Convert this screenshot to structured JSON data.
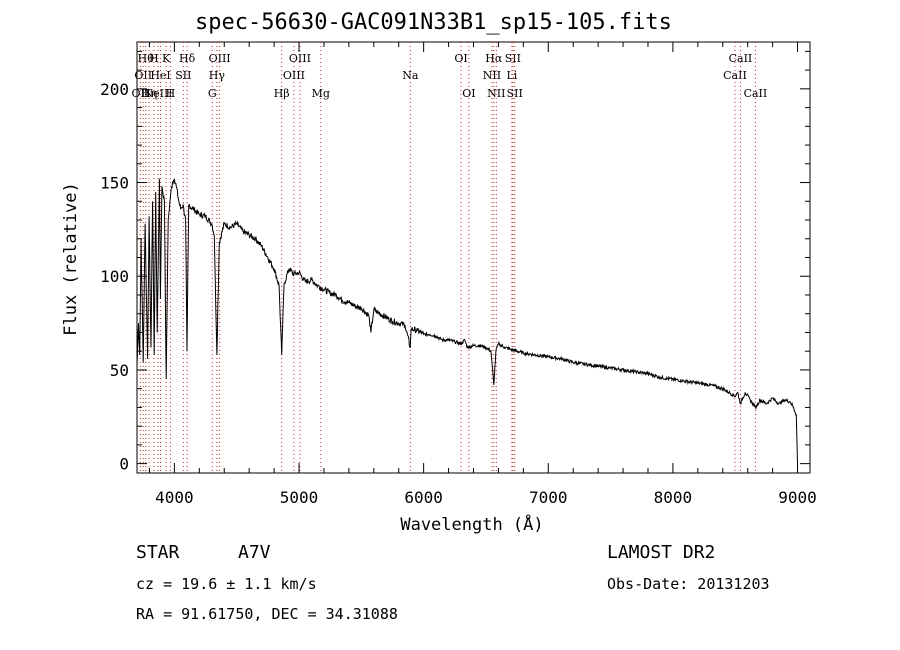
{
  "chart_data": {
    "type": "line",
    "title": "spec-56630-GAC091N33B1_sp15-105.fits",
    "xlabel": "Wavelength (Å)",
    "ylabel": "Flux (relative)",
    "xlim": [
      3700,
      9100
    ],
    "ylim": [
      -5,
      225
    ],
    "xticks": [
      4000,
      5000,
      6000,
      7000,
      8000,
      9000
    ],
    "yticks": [
      0,
      50,
      100,
      150,
      200
    ],
    "grid": false,
    "series": [
      {
        "x": [
          3700,
          3712,
          3722,
          3733,
          3750,
          3765,
          3785,
          3797,
          3812,
          3825,
          3838,
          3850,
          3862,
          3880,
          3888,
          3900,
          3920,
          3934,
          3950,
          3970,
          3985,
          4000,
          4015,
          4035,
          4050,
          4070,
          4090,
          4101,
          4115,
          4150,
          4200,
          4250,
          4300,
          4320,
          4341,
          4360,
          4400,
          4450,
          4500,
          4550,
          4600,
          4650,
          4700,
          4750,
          4800,
          4840,
          4861,
          4880,
          4920,
          4960,
          5000,
          5050,
          5100,
          5150,
          5200,
          5250,
          5300,
          5350,
          5400,
          5450,
          5500,
          5560,
          5577,
          5600,
          5650,
          5700,
          5750,
          5800,
          5850,
          5893,
          5900,
          5950,
          6000,
          6050,
          6100,
          6150,
          6200,
          6250,
          6300,
          6330,
          6350,
          6400,
          6450,
          6500,
          6540,
          6563,
          6580,
          6600,
          6650,
          6700,
          6800,
          6900,
          7000,
          7100,
          7200,
          7300,
          7400,
          7500,
          7600,
          7700,
          7800,
          7900,
          8000,
          8100,
          8200,
          8300,
          8400,
          8450,
          8498,
          8520,
          8542,
          8580,
          8620,
          8662,
          8700,
          8750,
          8800,
          8850,
          8900,
          8940,
          8960,
          8990,
          9000
        ],
        "y": [
          52,
          75,
          58,
          120,
          54,
          128,
          56,
          132,
          62,
          140,
          58,
          145,
          70,
          152,
          88,
          148,
          140,
          45,
          130,
          144,
          150,
          152,
          148,
          140,
          136,
          138,
          130,
          60,
          138,
          136,
          133,
          132,
          128,
          122,
          58,
          118,
          128,
          126,
          128,
          124,
          122,
          120,
          116,
          110,
          104,
          95,
          58,
          96,
          104,
          101,
          102,
          97,
          98,
          95,
          93,
          91,
          90,
          87,
          86,
          84,
          83,
          79,
          70,
          82,
          80,
          78,
          76,
          75,
          74,
          62,
          72,
          71,
          69,
          69,
          68,
          66,
          66,
          65,
          64,
          66,
          62,
          63,
          63,
          62,
          60,
          42,
          60,
          64,
          62,
          61,
          59,
          58,
          57,
          56,
          54,
          53,
          52,
          51,
          50,
          49,
          48,
          46,
          45,
          44,
          43,
          42,
          40,
          38,
          36,
          38,
          32,
          38,
          34,
          30,
          34,
          32,
          35,
          32,
          34,
          33,
          31,
          26,
          0
        ]
      }
    ],
    "lines": [
      {
        "wl": 3727,
        "label": "OII",
        "row": 3
      },
      {
        "wl": 3750,
        "label": "OII",
        "row": 2
      },
      {
        "wl": 3770,
        "label": "Hθ",
        "row": 1
      },
      {
        "wl": 3797,
        "label": "Hη",
        "row": 3
      },
      {
        "wl": 3835,
        "label": "H",
        "row": 1
      },
      {
        "wl": 3869,
        "label": "NeIII",
        "row": 3
      },
      {
        "wl": 3889,
        "label": "HeI",
        "row": 2
      },
      {
        "wl": 3934,
        "label": "K",
        "row": 1
      },
      {
        "wl": 3968,
        "label": "H",
        "row": 3
      },
      {
        "wl": 4072,
        "label": "SII",
        "row": 2
      },
      {
        "wl": 4102,
        "label": "Hδ",
        "row": 1
      },
      {
        "wl": 4304,
        "label": "G",
        "row": 3
      },
      {
        "wl": 4341,
        "label": "Hγ",
        "row": 2
      },
      {
        "wl": 4363,
        "label": "OIII",
        "row": 1
      },
      {
        "wl": 4861,
        "label": "Hβ",
        "row": 3
      },
      {
        "wl": 4959,
        "label": "OIII",
        "row": 2
      },
      {
        "wl": 5007,
        "label": "OIII",
        "row": 1
      },
      {
        "wl": 5175,
        "label": "Mg",
        "row": 3
      },
      {
        "wl": 5893,
        "label": "Na",
        "row": 2
      },
      {
        "wl": 6300,
        "label": "OI",
        "row": 1
      },
      {
        "wl": 6363,
        "label": "OI",
        "row": 3
      },
      {
        "wl": 6548,
        "label": "NII",
        "row": 2
      },
      {
        "wl": 6563,
        "label": "Hα",
        "row": 1
      },
      {
        "wl": 6583,
        "label": "NII",
        "row": 3
      },
      {
        "wl": 6708,
        "label": "Li",
        "row": 2
      },
      {
        "wl": 6716,
        "label": "SII",
        "row": 1
      },
      {
        "wl": 6731,
        "label": "SII",
        "row": 3
      },
      {
        "wl": 8498,
        "label": "CaII",
        "row": 2
      },
      {
        "wl": 8542,
        "label": "CaII",
        "row": 1
      },
      {
        "wl": 8662,
        "label": "CaII",
        "row": 3
      }
    ]
  },
  "info": {
    "object_class": "STAR",
    "subclass": "A7V",
    "survey": "LAMOST DR2",
    "redshift": "cz = 19.6 ± 1.1 km/s",
    "obs_date": "Obs-Date: 20131203",
    "coords": "RA =  91.61750, DEC =  34.31088"
  }
}
